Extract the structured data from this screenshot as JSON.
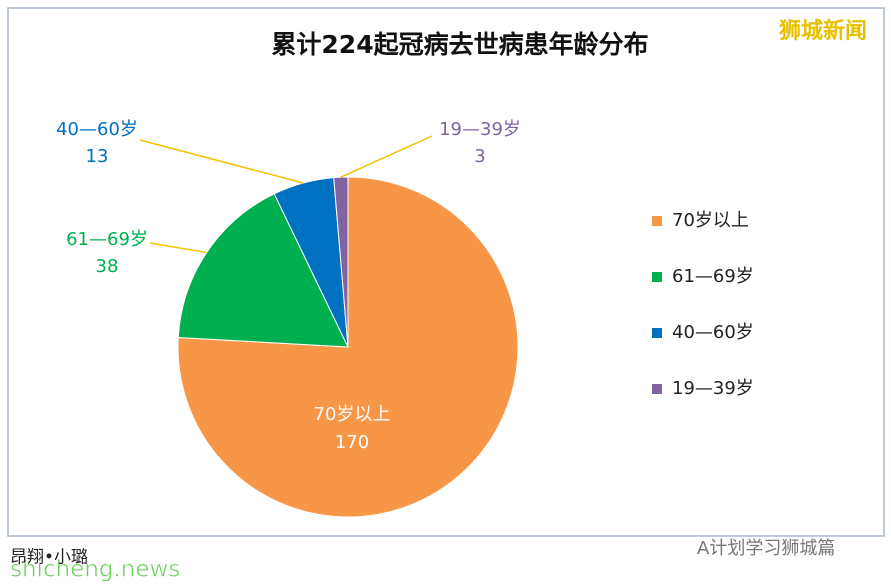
{
  "chart_data": {
    "type": "pie",
    "title": "累计224起冠病去世病患年龄分布",
    "categories": [
      "70岁以上",
      "61—69岁",
      "40—60岁",
      "19—39岁"
    ],
    "values": [
      170,
      38,
      13,
      3
    ],
    "colors": [
      "#f79646",
      "#00b050",
      "#0070c0",
      "#8064a2"
    ],
    "legend": "right"
  },
  "watermarks": [
    "狮城新闻",
    "shicheng.news",
    "A计划学习狮城篇",
    "昂翔•小璐"
  ]
}
